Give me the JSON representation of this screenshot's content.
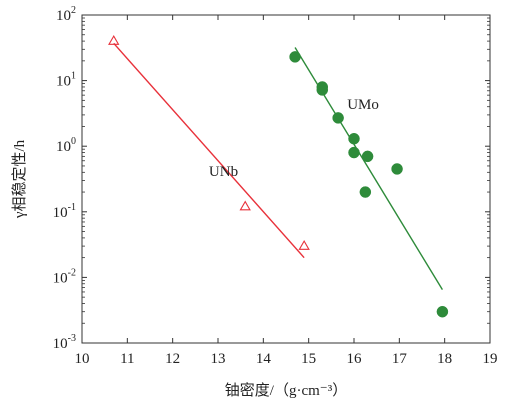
{
  "chart_data": {
    "type": "scatter",
    "title": "",
    "xlabel": "铀密度/（g·cm⁻³）",
    "ylabel": "γ相稳定性/h",
    "x_ticks": [
      "10",
      "11",
      "12",
      "13",
      "14",
      "15",
      "16",
      "17",
      "18",
      "19"
    ],
    "y_ticks": [
      {
        "base": "10",
        "exp": "2",
        "value": 100
      },
      {
        "base": "10",
        "exp": "1",
        "value": 10
      },
      {
        "base": "10",
        "exp": "0",
        "value": 1
      },
      {
        "base": "10",
        "exp": "-1",
        "value": 0.1
      },
      {
        "base": "10",
        "exp": "-2",
        "value": 0.01
      },
      {
        "base": "10",
        "exp": "-3",
        "value": 0.001
      }
    ],
    "xlim": [
      10,
      19
    ],
    "ylim": [
      0.001,
      100
    ],
    "yscale": "log",
    "grid": false,
    "series": [
      {
        "name": "UNb",
        "marker": "open-triangle",
        "color": "#e8313a",
        "points": [
          {
            "x": 10.7,
            "y": 40
          },
          {
            "x": 13.6,
            "y": 0.12
          },
          {
            "x": 14.9,
            "y": 0.03
          }
        ],
        "fit": {
          "x": [
            10.7,
            14.9
          ],
          "y": [
            37,
            0.02
          ]
        }
      },
      {
        "name": "UMo",
        "marker": "filled-circle",
        "color": "#2e8b3a",
        "points": [
          {
            "x": 14.7,
            "y": 23
          },
          {
            "x": 15.3,
            "y": 8
          },
          {
            "x": 15.3,
            "y": 7.2
          },
          {
            "x": 15.65,
            "y": 2.7
          },
          {
            "x": 16.0,
            "y": 1.3
          },
          {
            "x": 16.0,
            "y": 0.8
          },
          {
            "x": 16.3,
            "y": 0.7
          },
          {
            "x": 16.25,
            "y": 0.2
          },
          {
            "x": 16.95,
            "y": 0.45
          },
          {
            "x": 17.95,
            "y": 0.003
          }
        ],
        "fit": {
          "x": [
            14.7,
            17.95
          ],
          "y": [
            32,
            0.0065
          ]
        }
      }
    ]
  }
}
